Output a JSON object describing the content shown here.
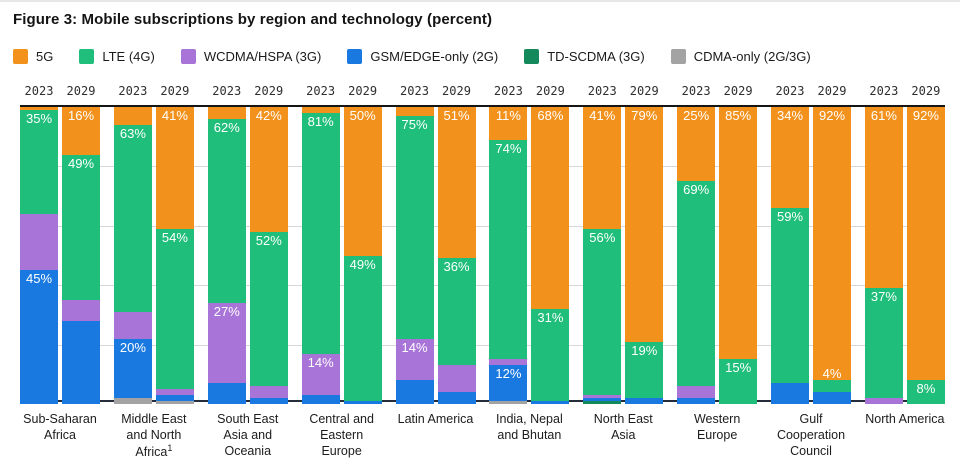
{
  "title": "Figure 3: Mobile subscriptions by region and technology (percent)",
  "legend": [
    {
      "label": "5G",
      "color": "#F2921D"
    },
    {
      "label": "LTE (4G)",
      "color": "#1FBE7A"
    },
    {
      "label": "WCDMA/HSPA (3G)",
      "color": "#A874D8"
    },
    {
      "label": "GSM/EDGE-only (2G)",
      "color": "#1A79E0"
    },
    {
      "label": "TD-SCDMA (3G)",
      "color": "#13895C"
    },
    {
      "label": "CDMA-only (2G/3G)",
      "color": "#A3A3A3"
    }
  ],
  "chart_data": {
    "type": "bar",
    "stacked": true,
    "unit": "percent",
    "ylim": [
      0,
      100
    ],
    "gridlines_percent": [
      20,
      40,
      60,
      80
    ],
    "years": [
      "2023",
      "2029"
    ],
    "technologies_top_to_bottom": [
      "5G",
      "LTE (4G)",
      "WCDMA/HSPA (3G)",
      "GSM/EDGE-only (2G)",
      "TD-SCDMA (3G)",
      "CDMA-only (2G/3G)"
    ],
    "regions": [
      {
        "name": "Sub-Saharan Africa",
        "bars": [
          {
            "year": "2023",
            "segments": [
              {
                "tech": "5G",
                "value": 1
              },
              {
                "tech": "LTE (4G)",
                "value": 35,
                "labeled": true
              },
              {
                "tech": "WCDMA/HSPA (3G)",
                "value": 19
              },
              {
                "tech": "GSM/EDGE-only (2G)",
                "value": 45,
                "labeled": true
              }
            ]
          },
          {
            "year": "2029",
            "segments": [
              {
                "tech": "5G",
                "value": 16,
                "labeled": true
              },
              {
                "tech": "LTE (4G)",
                "value": 49,
                "labeled": true
              },
              {
                "tech": "WCDMA/HSPA (3G)",
                "value": 7
              },
              {
                "tech": "GSM/EDGE-only (2G)",
                "value": 28
              }
            ]
          }
        ]
      },
      {
        "name": "Middle East and North Africa",
        "sup": "1",
        "bars": [
          {
            "year": "2023",
            "segments": [
              {
                "tech": "5G",
                "value": 6
              },
              {
                "tech": "LTE (4G)",
                "value": 63,
                "labeled": true
              },
              {
                "tech": "WCDMA/HSPA (3G)",
                "value": 9
              },
              {
                "tech": "GSM/EDGE-only (2G)",
                "value": 20,
                "labeled": true
              },
              {
                "tech": "CDMA-only (2G/3G)",
                "value": 2
              }
            ]
          },
          {
            "year": "2029",
            "segments": [
              {
                "tech": "5G",
                "value": 41,
                "labeled": true
              },
              {
                "tech": "LTE (4G)",
                "value": 54,
                "labeled": true
              },
              {
                "tech": "WCDMA/HSPA (3G)",
                "value": 2
              },
              {
                "tech": "GSM/EDGE-only (2G)",
                "value": 2
              },
              {
                "tech": "CDMA-only (2G/3G)",
                "value": 1
              }
            ]
          }
        ]
      },
      {
        "name": "South East Asia and Oceania",
        "bars": [
          {
            "year": "2023",
            "segments": [
              {
                "tech": "5G",
                "value": 4
              },
              {
                "tech": "LTE (4G)",
                "value": 62,
                "labeled": true
              },
              {
                "tech": "WCDMA/HSPA (3G)",
                "value": 27,
                "labeled": true
              },
              {
                "tech": "GSM/EDGE-only (2G)",
                "value": 7
              }
            ]
          },
          {
            "year": "2029",
            "segments": [
              {
                "tech": "5G",
                "value": 42,
                "labeled": true
              },
              {
                "tech": "LTE (4G)",
                "value": 52,
                "labeled": true
              },
              {
                "tech": "WCDMA/HSPA (3G)",
                "value": 4
              },
              {
                "tech": "GSM/EDGE-only (2G)",
                "value": 2
              }
            ]
          }
        ]
      },
      {
        "name": "Central and Eastern Europe",
        "bars": [
          {
            "year": "2023",
            "segments": [
              {
                "tech": "5G",
                "value": 2
              },
              {
                "tech": "LTE (4G)",
                "value": 81,
                "labeled": true
              },
              {
                "tech": "WCDMA/HSPA (3G)",
                "value": 14,
                "labeled": true
              },
              {
                "tech": "GSM/EDGE-only (2G)",
                "value": 3
              }
            ]
          },
          {
            "year": "2029",
            "segments": [
              {
                "tech": "5G",
                "value": 50,
                "labeled": true
              },
              {
                "tech": "LTE (4G)",
                "value": 49,
                "labeled": true
              },
              {
                "tech": "GSM/EDGE-only (2G)",
                "value": 1
              }
            ]
          }
        ]
      },
      {
        "name": "Latin America",
        "bars": [
          {
            "year": "2023",
            "segments": [
              {
                "tech": "5G",
                "value": 3
              },
              {
                "tech": "LTE (4G)",
                "value": 75,
                "labeled": true
              },
              {
                "tech": "WCDMA/HSPA (3G)",
                "value": 14,
                "labeled": true
              },
              {
                "tech": "GSM/EDGE-only (2G)",
                "value": 8
              }
            ]
          },
          {
            "year": "2029",
            "segments": [
              {
                "tech": "5G",
                "value": 51,
                "labeled": true
              },
              {
                "tech": "LTE (4G)",
                "value": 36,
                "labeled": true
              },
              {
                "tech": "WCDMA/HSPA (3G)",
                "value": 9
              },
              {
                "tech": "GSM/EDGE-only (2G)",
                "value": 4
              }
            ]
          }
        ]
      },
      {
        "name": "India, Nepal and Bhutan",
        "bars": [
          {
            "year": "2023",
            "segments": [
              {
                "tech": "5G",
                "value": 11,
                "labeled": true
              },
              {
                "tech": "LTE (4G)",
                "value": 74,
                "labeled": true
              },
              {
                "tech": "WCDMA/HSPA (3G)",
                "value": 2
              },
              {
                "tech": "GSM/EDGE-only (2G)",
                "value": 12,
                "labeled": true
              },
              {
                "tech": "CDMA-only (2G/3G)",
                "value": 1
              }
            ]
          },
          {
            "year": "2029",
            "segments": [
              {
                "tech": "5G",
                "value": 68,
                "labeled": true
              },
              {
                "tech": "LTE (4G)",
                "value": 31,
                "labeled": true
              },
              {
                "tech": "GSM/EDGE-only (2G)",
                "value": 1
              }
            ]
          }
        ]
      },
      {
        "name": "North East Asia",
        "bars": [
          {
            "year": "2023",
            "segments": [
              {
                "tech": "5G",
                "value": 41,
                "labeled": true
              },
              {
                "tech": "LTE (4G)",
                "value": 56,
                "labeled": true
              },
              {
                "tech": "WCDMA/HSPA (3G)",
                "value": 1
              },
              {
                "tech": "GSM/EDGE-only (2G)",
                "value": 1
              },
              {
                "tech": "TD-SCDMA (3G)",
                "value": 1
              }
            ]
          },
          {
            "year": "2029",
            "segments": [
              {
                "tech": "5G",
                "value": 79,
                "labeled": true
              },
              {
                "tech": "LTE (4G)",
                "value": 19,
                "labeled": true
              },
              {
                "tech": "GSM/EDGE-only (2G)",
                "value": 2
              }
            ]
          }
        ]
      },
      {
        "name": "Western Europe",
        "bars": [
          {
            "year": "2023",
            "segments": [
              {
                "tech": "5G",
                "value": 25,
                "labeled": true
              },
              {
                "tech": "LTE (4G)",
                "value": 69,
                "labeled": true
              },
              {
                "tech": "WCDMA/HSPA (3G)",
                "value": 4
              },
              {
                "tech": "GSM/EDGE-only (2G)",
                "value": 2
              }
            ]
          },
          {
            "year": "2029",
            "segments": [
              {
                "tech": "5G",
                "value": 85,
                "labeled": true
              },
              {
                "tech": "LTE (4G)",
                "value": 15,
                "labeled": true
              }
            ]
          }
        ]
      },
      {
        "name": "Gulf Cooperation Council",
        "bars": [
          {
            "year": "2023",
            "segments": [
              {
                "tech": "5G",
                "value": 34,
                "labeled": true
              },
              {
                "tech": "LTE (4G)",
                "value": 59,
                "labeled": true
              },
              {
                "tech": "GSM/EDGE-only (2G)",
                "value": 7
              }
            ]
          },
          {
            "year": "2029",
            "segments": [
              {
                "tech": "5G",
                "value": 92,
                "labeled": true
              },
              {
                "tech": "LTE (4G)",
                "value": 4,
                "labeled": true
              },
              {
                "tech": "GSM/EDGE-only (2G)",
                "value": 4
              }
            ]
          }
        ]
      },
      {
        "name": "North America",
        "bars": [
          {
            "year": "2023",
            "segments": [
              {
                "tech": "5G",
                "value": 61,
                "labeled": true
              },
              {
                "tech": "LTE (4G)",
                "value": 37,
                "labeled": true
              },
              {
                "tech": "WCDMA/HSPA (3G)",
                "value": 2
              }
            ]
          },
          {
            "year": "2029",
            "segments": [
              {
                "tech": "5G",
                "value": 92,
                "labeled": true
              },
              {
                "tech": "LTE (4G)",
                "value": 8,
                "labeled": true
              }
            ]
          }
        ]
      }
    ]
  }
}
